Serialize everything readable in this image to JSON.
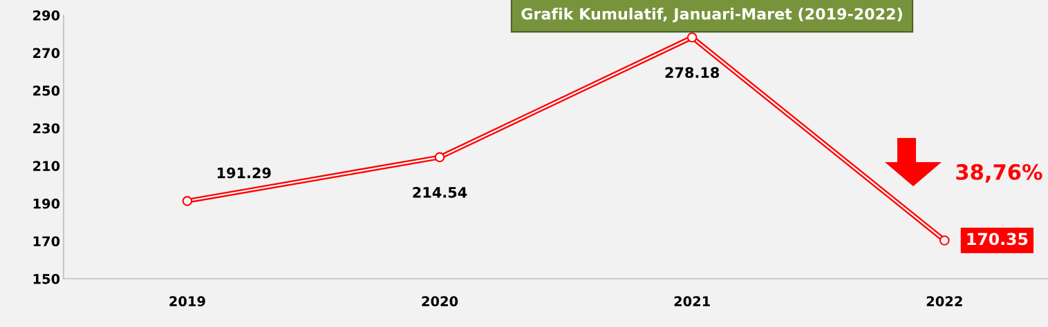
{
  "chart_data": {
    "type": "line",
    "title": "Grafik Kumulatif, Januari-Maret (2019-2022)",
    "categories": [
      "2019",
      "2020",
      "2021",
      "2022"
    ],
    "series": [
      {
        "color": "#ff0000",
        "values": [
          191.29,
          214.54,
          278.18,
          170.35
        ]
      }
    ],
    "ylim": [
      150,
      290
    ],
    "yticks": [
      150,
      170,
      190,
      210,
      230,
      250,
      270,
      290
    ],
    "data_labels": true,
    "marker": "circle",
    "grid": false,
    "annotations": [
      "38,76%"
    ]
  }
}
